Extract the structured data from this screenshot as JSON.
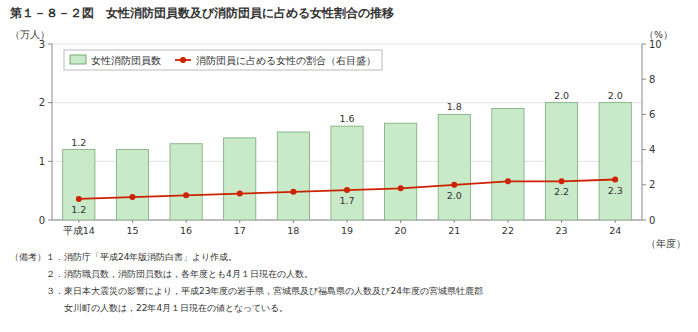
{
  "chart_data": {
    "type": "bar",
    "title": "第１－８－２図　女性消防団員数及び消防団員に占める女性割合の推移",
    "xlabel": "（年度）",
    "ylabel": "（万人）",
    "y2label": "（%）",
    "categories": [
      "平成14",
      "15",
      "16",
      "17",
      "18",
      "19",
      "20",
      "21",
      "22",
      "23",
      "24"
    ],
    "series": [
      {
        "name": "女性消防団員数",
        "type": "bar",
        "color": "#c8eac8",
        "values": [
          1.2,
          1.2,
          1.3,
          1.4,
          1.5,
          1.6,
          1.65,
          1.8,
          1.9,
          2.0,
          2.0
        ],
        "value_labels": [
          "1.2",
          null,
          null,
          null,
          null,
          "1.6",
          null,
          "1.8",
          null,
          "2.0",
          "2.0"
        ]
      },
      {
        "name": "消防団員に占める女性の割合（右目盛）",
        "type": "line",
        "axis": "y2",
        "color": "#cc2200",
        "marker": "circle",
        "values": [
          1.2,
          1.3,
          1.4,
          1.5,
          1.6,
          1.7,
          1.8,
          2.0,
          2.2,
          2.2,
          2.3
        ],
        "value_labels": [
          "1.2",
          null,
          null,
          null,
          null,
          "1.7",
          null,
          "2.0",
          null,
          "2.2",
          "2.3"
        ]
      }
    ],
    "ylim": [
      0,
      3
    ],
    "yticks": [
      0,
      1,
      2,
      3
    ],
    "y2lim": [
      0,
      10
    ],
    "y2ticks": [
      0,
      2,
      4,
      6,
      8,
      10
    ],
    "grid": true,
    "legend": "upper left",
    "annotations": [
      "（備考）１．消防庁「平成24年版消防白書」より作成。",
      "　　　　２．消防職員数，消防団員数は，各年度とも4月１日現在の人数。",
      "　　　　３．東日本大震災の影響により，平成23年度の岩手県，宮城県及び福島県の人数及び24年度の宮城県牡鹿郡",
      "　　　　　　女川町の人数は，22年4月１日現在の値となっている。"
    ]
  }
}
